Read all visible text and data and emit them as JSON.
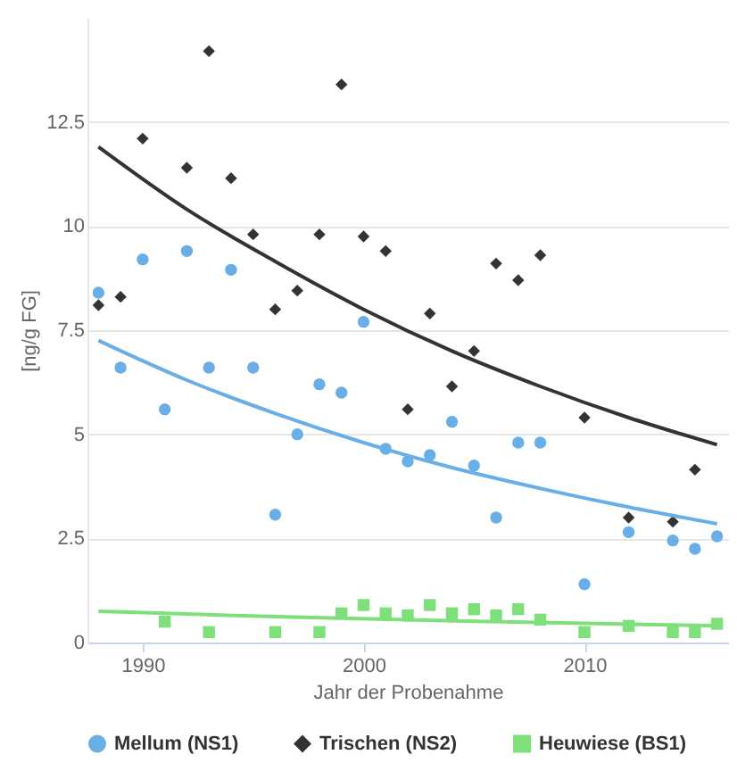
{
  "chart_data": {
    "type": "scatter",
    "xlabel": "Jahr der Probenahme",
    "ylabel": "[ng/g FG]",
    "xlim": [
      1987.5,
      2016.5
    ],
    "xticks": [
      1990,
      2000,
      2010
    ],
    "ylim": [
      0,
      15
    ],
    "yticks": [
      0,
      {
        "value": 2.5,
        "label": "2.5"
      },
      5,
      {
        "value": 7.5,
        "label": "7.5"
      },
      10,
      {
        "value": 12.5,
        "label": "12.5"
      }
    ],
    "grid": "y",
    "legend": "bottom",
    "series": [
      {
        "name": "Mellum (NS1)",
        "marker": "circle",
        "color": "#6aaee8",
        "x": [
          1988,
          1989,
          1990,
          1991,
          1992,
          1993,
          1994,
          1995,
          1996,
          1997,
          1998,
          1999,
          2000,
          2001,
          2002,
          2003,
          2004,
          2005,
          2006,
          2007,
          2008,
          2010,
          2012,
          2014,
          2015,
          2016
        ],
        "values": [
          8.4,
          6.6,
          9.2,
          5.6,
          9.4,
          6.6,
          8.95,
          6.6,
          3.07,
          5.0,
          6.2,
          6.0,
          7.7,
          4.65,
          4.35,
          4.5,
          5.3,
          4.25,
          3.0,
          4.8,
          4.8,
          1.4,
          2.65,
          2.45,
          2.25,
          2.55
        ]
      },
      {
        "name": "Trischen (NS2)",
        "marker": "diamond",
        "color": "#333333",
        "x": [
          1988,
          1989,
          1990,
          1992,
          1993,
          1994,
          1995,
          1996,
          1997,
          1998,
          1999,
          2000,
          2001,
          2002,
          2003,
          2004,
          2005,
          2006,
          2007,
          2008,
          2010,
          2012,
          2014,
          2015
        ],
        "values": [
          8.1,
          8.3,
          12.1,
          11.4,
          14.2,
          11.15,
          9.8,
          8.0,
          8.45,
          9.8,
          13.4,
          9.75,
          9.4,
          5.6,
          7.9,
          6.15,
          7.0,
          9.1,
          8.7,
          9.3,
          5.4,
          3.0,
          2.9,
          4.15
        ]
      },
      {
        "name": "Heuwiese (BS1)",
        "marker": "square",
        "color": "#7ee07a",
        "x": [
          1991,
          1993,
          1996,
          1998,
          1999,
          2000,
          2001,
          2002,
          2003,
          2004,
          2005,
          2006,
          2007,
          2008,
          2010,
          2012,
          2014,
          2015,
          2016
        ],
        "values": [
          0.5,
          0.25,
          0.25,
          0.25,
          0.7,
          0.9,
          0.7,
          0.65,
          0.9,
          0.7,
          0.8,
          0.65,
          0.8,
          0.55,
          0.25,
          0.4,
          0.25,
          0.25,
          0.45
        ]
      },
      {
        "type": "line",
        "color": "#6aaee8",
        "x": [
          1988,
          1992,
          1996,
          2000,
          2004,
          2008,
          2012,
          2016
        ],
        "values": [
          7.25,
          6.3,
          5.5,
          4.8,
          4.2,
          3.7,
          3.25,
          2.85
        ]
      },
      {
        "type": "line",
        "color": "#333333",
        "x": [
          1988,
          1992,
          1996,
          2000,
          2004,
          2008,
          2012,
          2016
        ],
        "values": [
          11.9,
          10.4,
          9.15,
          8.0,
          7.0,
          6.15,
          5.4,
          4.75
        ]
      },
      {
        "type": "line",
        "color": "#7ee07a",
        "x": [
          1988,
          1996,
          2004,
          2012,
          2016
        ],
        "values": [
          0.75,
          0.62,
          0.52,
          0.44,
          0.4
        ]
      }
    ]
  }
}
